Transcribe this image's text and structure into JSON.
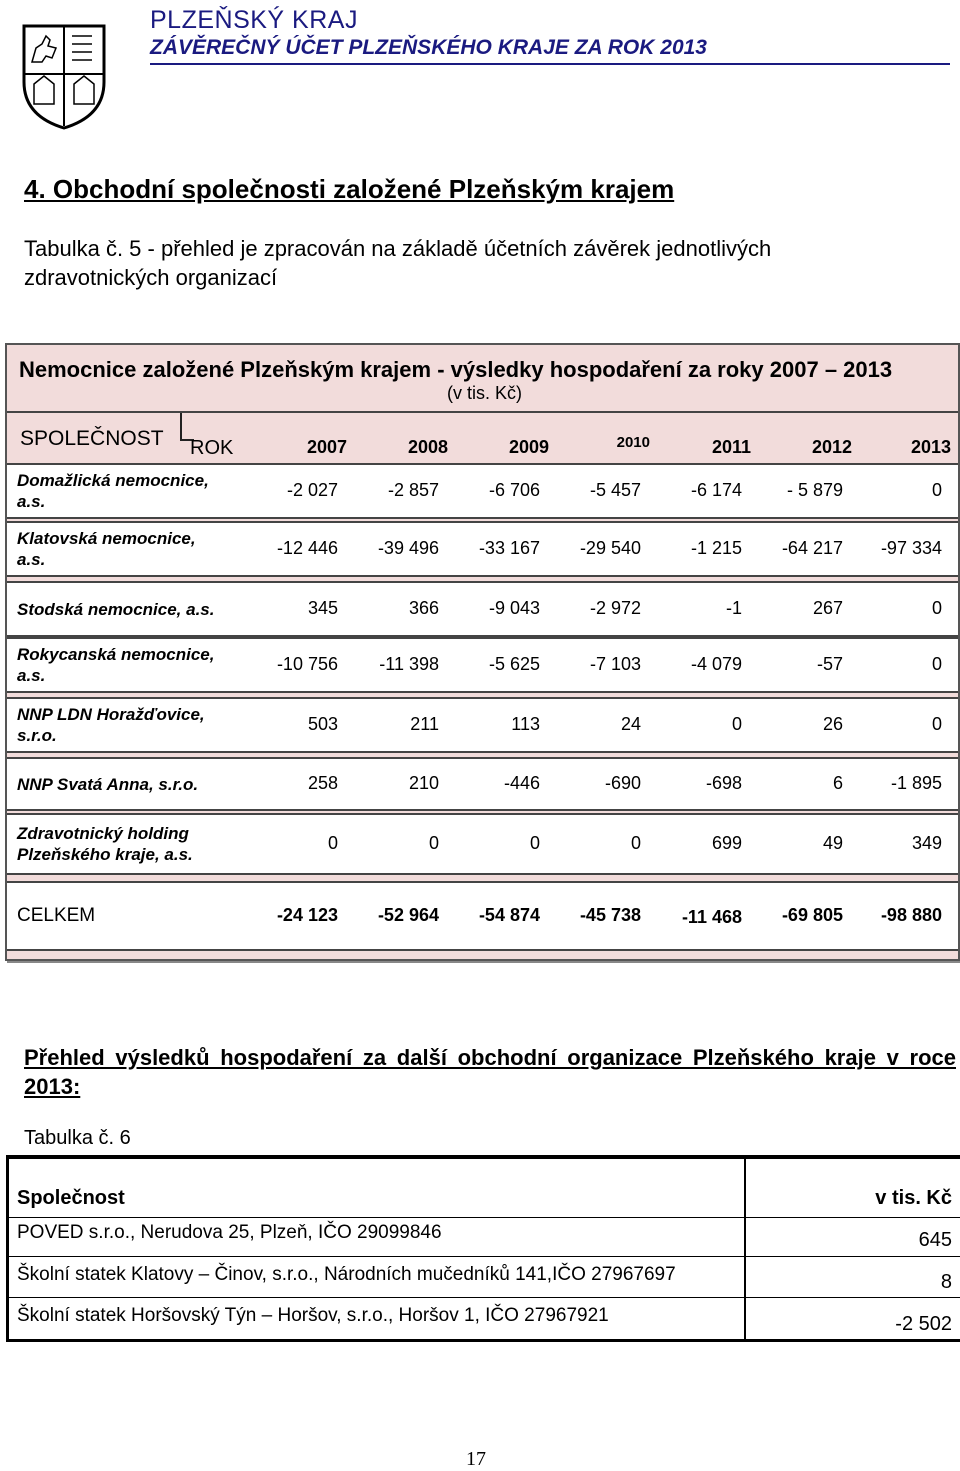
{
  "header": {
    "region": "PLZEŇSKÝ KRAJ",
    "document": "ZÁVĚREČNÝ ÚČET PLZEŇSKÉHO KRAJE ZA ROK 2013"
  },
  "section_title": "4. Obchodní společnosti založené Plzeňským krajem",
  "table5_caption": "Tabulka č. 5 - přehled je zpracován na základě účetních závěrek jednotlivých zdravotnických organizací",
  "table5": {
    "title": "Nemocnice založené Plzeňským krajem - výsledky hospodaření za roky 2007 – 2013",
    "unit": "(v tis. Kč)",
    "col_company": "SPOLEČNOST",
    "col_year": "ROK",
    "years": [
      "2007",
      "2008",
      "2009",
      "2010",
      "2011",
      "2012",
      "2013"
    ],
    "rows": [
      {
        "name_l1": "Domažlická nemocnice,",
        "name_l2": "a.s.",
        "values": [
          "-2 027",
          "-2 857",
          "-6 706",
          "-5 457",
          "-6 174",
          "- 5 879",
          "0"
        ]
      },
      {
        "name_l1": "Klatovská nemocnice,",
        "name_l2": "a.s.",
        "values": [
          "-12 446",
          "-39 496",
          "-33 167",
          "-29 540",
          "-1 215",
          "-64 217",
          "-97 334"
        ]
      },
      {
        "name_l1": "Stodská nemocnice, a.s.",
        "name_l2": "",
        "values": [
          "345",
          "366",
          "-9 043",
          "-2 972",
          "-1",
          "267",
          "0"
        ]
      },
      {
        "name_l1": "Rokycanská nemocnice,",
        "name_l2": "a.s.",
        "values": [
          "-10 756",
          "-11 398",
          "-5 625",
          "-7 103",
          "-4 079",
          "-57",
          "0"
        ]
      },
      {
        "name_l1": "NNP LDN Horažďovice,",
        "name_l2": "s.r.o.",
        "values": [
          "503",
          "211",
          "113",
          "24",
          "0",
          "26",
          "0"
        ]
      },
      {
        "name_l1": "NNP Svatá Anna, s.r.o.",
        "name_l2": "",
        "values": [
          "258",
          "210",
          "-446",
          "-690",
          "-698",
          "6",
          "-1 895"
        ]
      },
      {
        "name_l1": "Zdravotnický holding",
        "name_l2": "Plzeňského kraje, a.s.",
        "values": [
          "0",
          "0",
          "0",
          "0",
          "699",
          "49",
          "349"
        ]
      }
    ],
    "total_label": "CELKEM",
    "totals": [
      "-24 123",
      "-52 964",
      "-54 874",
      "-45 738",
      "-11 468",
      "-69 805",
      "-98 880"
    ]
  },
  "section2_title": "Přehled výsledků hospodaření za další obchodní organizace Plzeňského kraje v roce 2013:",
  "table6": {
    "caption": "Tabulka č. 6",
    "col_company": "Společnost",
    "col_value": "v tis. Kč",
    "rows": [
      {
        "name": "POVED s.r.o., Nerudova 25, Plzeň, IČO 29099846",
        "value": "645"
      },
      {
        "name": "Školní statek Klatovy – Činov, s.r.o., Národních mučedníků 141,IČO 27967697",
        "value": "8"
      },
      {
        "name": "Školní statek Horšovský Týn – Horšov, s.r.o., Horšov 1, IČO 27967921",
        "value": "-2 502"
      }
    ]
  },
  "page_number": "17"
}
